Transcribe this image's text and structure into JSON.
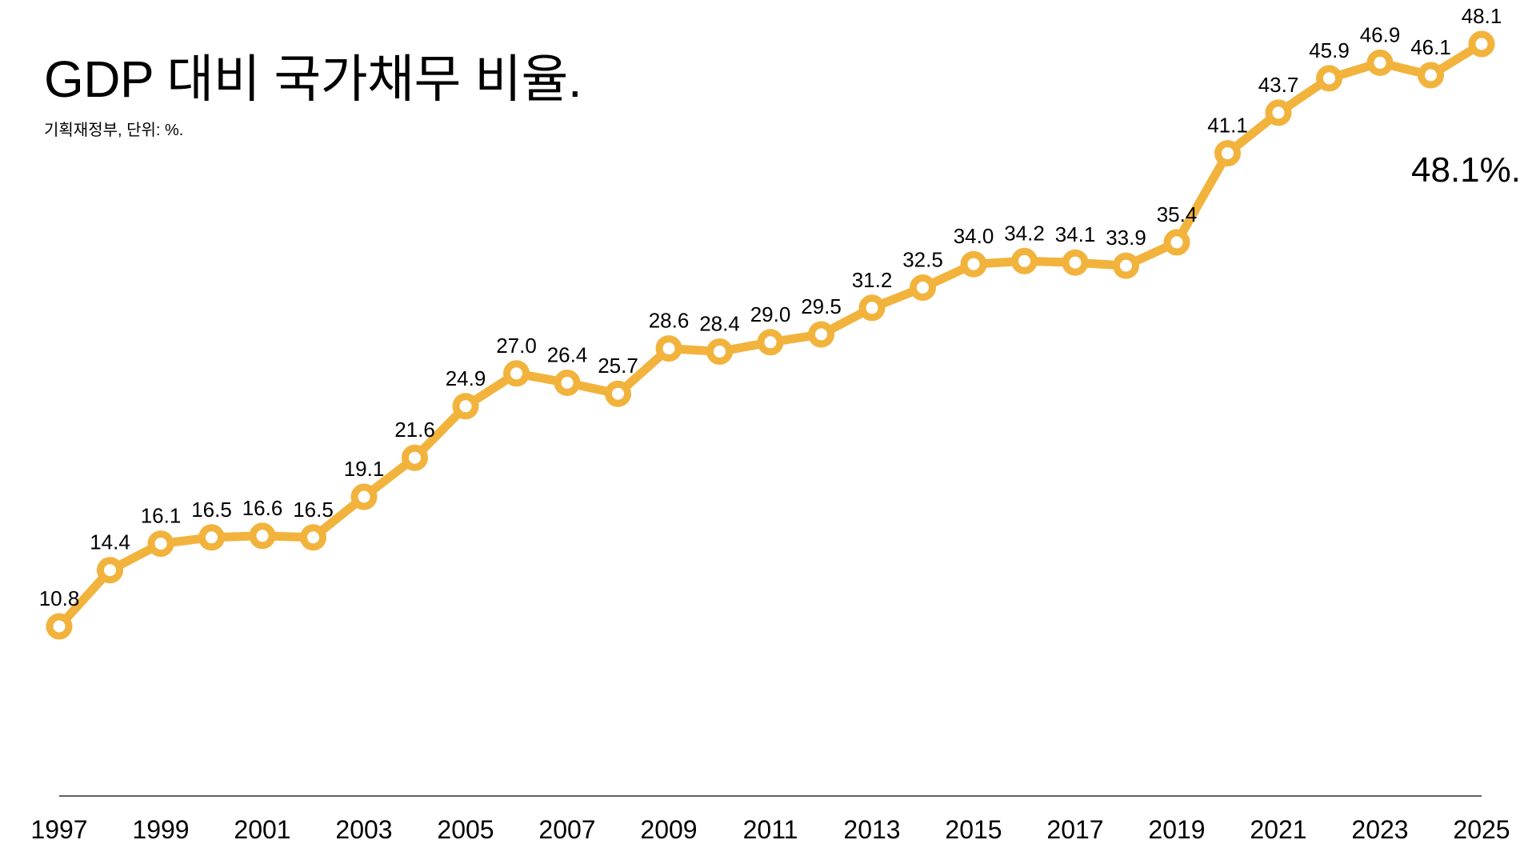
{
  "header": {
    "title": "GDP 대비 국가채무 비율.",
    "subtitle": "기획재정부, 단위: %.",
    "highlight": "48.1%."
  },
  "colors": {
    "line": "#F2B33D",
    "marker_fill": "#FFFFFF",
    "axis": "#000000",
    "text": "#000000"
  },
  "chart_data": {
    "type": "line",
    "title": "GDP 대비 국가채무 비율.",
    "subtitle": "기획재정부, 단위: %.",
    "x": [
      1997,
      1998,
      1999,
      2000,
      2001,
      2002,
      2003,
      2004,
      2005,
      2006,
      2007,
      2008,
      2009,
      2010,
      2011,
      2012,
      2013,
      2014,
      2015,
      2016,
      2017,
      2018,
      2019,
      2020,
      2021,
      2022,
      2023,
      2024,
      2025
    ],
    "series": [
      {
        "values": [
          10.8,
          14.4,
          16.1,
          16.5,
          16.6,
          16.5,
          19.1,
          21.6,
          24.9,
          27.0,
          26.4,
          25.7,
          28.6,
          28.4,
          29.0,
          29.5,
          31.2,
          32.5,
          34.0,
          34.2,
          34.1,
          33.9,
          35.4,
          41.1,
          43.7,
          45.9,
          46.9,
          46.1,
          48.1
        ],
        "labels": [
          "10.8",
          "14.4",
          "16.1",
          "16.5",
          "16.6",
          "16.5",
          "19.1",
          "21.6",
          "24.9",
          "27.0",
          "26.4",
          "25.7",
          "28.6",
          "28.4",
          "29.0",
          "29.5",
          "31.2",
          "32.5",
          "34.0",
          "34.2",
          "34.1",
          "33.9",
          "35.4",
          "41.1",
          "43.7",
          "45.9",
          "46.9",
          "46.1",
          "48.1"
        ]
      }
    ],
    "x_tick_labels": [
      "1997",
      "1999",
      "2001",
      "2003",
      "2005",
      "2007",
      "2009",
      "2011",
      "2013",
      "2015",
      "2017",
      "2019",
      "2021",
      "2023",
      "2025"
    ],
    "xlabel": "",
    "ylabel": "",
    "xlim": [
      1997,
      2025
    ],
    "ylim": [
      0,
      50
    ],
    "grid": false,
    "legend": "none"
  }
}
